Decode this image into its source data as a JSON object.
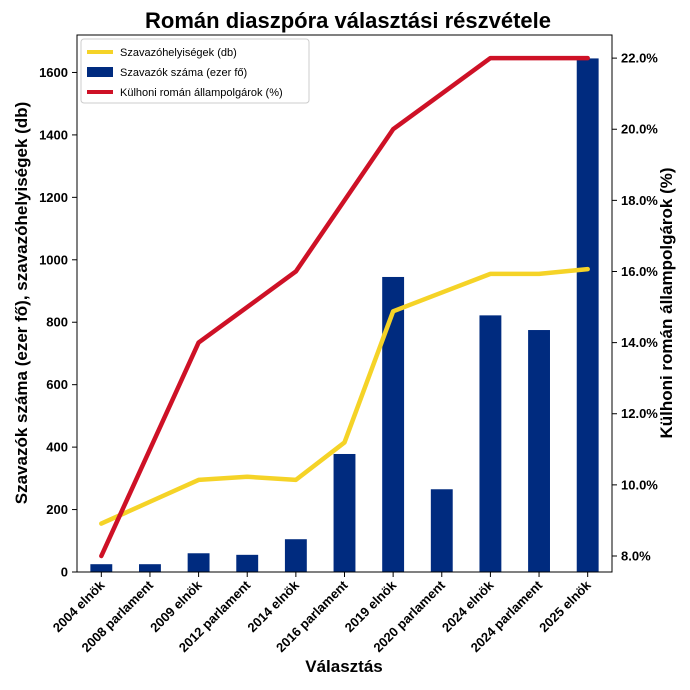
{
  "chart_data": {
    "type": "bar+line",
    "title": "Román diaszpóra választási részvétele",
    "xlabel": "Választás",
    "ylabel_left": "Szavazók száma (ezer fő), szavazóhelyiségek (db)",
    "ylabel_right": "Külhoni román állampolgárok (%)",
    "categories": [
      "2004 elnök",
      "2008 parlament",
      "2009 elnök",
      "2012 parlament",
      "2014 elnök",
      "2016 parlament",
      "2019 elnök",
      "2020 parlament",
      "2024 elnök",
      "2024 parlament",
      "2025 elnök"
    ],
    "ylim_left": [
      0,
      1720
    ],
    "yticks_left": [
      0,
      200,
      400,
      600,
      800,
      1000,
      1200,
      1400,
      1600
    ],
    "ylim_right": [
      7.55,
      22.65
    ],
    "yticks_right": [
      8.0,
      10.0,
      12.0,
      14.0,
      16.0,
      18.0,
      20.0,
      22.0
    ],
    "yticks_right_labels": [
      "8.0%",
      "10.0%",
      "12.0%",
      "14.0%",
      "16.0%",
      "18.0%",
      "20.0%",
      "22.0%"
    ],
    "series": [
      {
        "name": "Szavazóhelyiségek (db)",
        "type": "line",
        "axis": "left",
        "color": "#f5d327",
        "values": [
          155,
          225,
          295,
          305,
          295,
          415,
          835,
          895,
          955,
          955,
          970
        ]
      },
      {
        "name": "Szavazók száma (ezer fő)",
        "type": "bar",
        "axis": "left",
        "color": "#002b7f",
        "values": [
          25,
          25,
          60,
          55,
          105,
          378,
          945,
          265,
          822,
          775,
          1645
        ]
      },
      {
        "name": "Külhoni román állampolgárok (%)",
        "type": "line",
        "axis": "right",
        "color": "#ce1126",
        "values": [
          8.0,
          11.0,
          14.0,
          15.0,
          16.0,
          18.0,
          20.0,
          21.0,
          22.0,
          22.0,
          22.0
        ]
      }
    ],
    "legend_position": "top-left",
    "grid": false
  }
}
